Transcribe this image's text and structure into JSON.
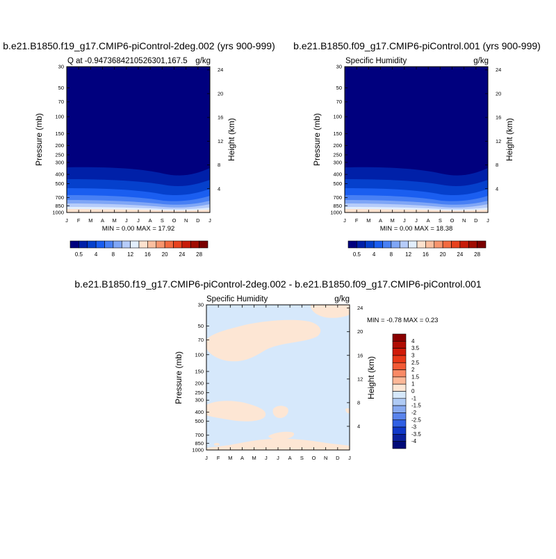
{
  "chart_data": [
    {
      "type": "contour",
      "title": "b.e21.B1850.f19_g17.CMIP6-piControl-2deg.002 (yrs 900-999)",
      "subtitle_left": "Q at -0.9473684210526301,167.5",
      "subtitle_right": "g/kg",
      "ylabel": "Pressure (mb)",
      "ylabel_right": "Height (km)",
      "x_ticks": [
        "J",
        "F",
        "M",
        "A",
        "M",
        "J",
        "J",
        "A",
        "S",
        "O",
        "N",
        "D",
        "J"
      ],
      "y_ticks": [
        "30",
        "50",
        "70",
        "100",
        "150",
        "200",
        "250",
        "300",
        "400",
        "500",
        "700",
        "850",
        "1000"
      ],
      "height_ticks": [
        "24",
        "20",
        "16",
        "12",
        "8",
        "4"
      ],
      "minmax": "MIN =   0.00 MAX =  17.92",
      "colorbar_labels": [
        "0.5",
        "4",
        "8",
        "12",
        "16",
        "20",
        "24",
        "28"
      ],
      "colors": [
        "#00007e",
        "#0020a8",
        "#0540cc",
        "#1a5ef0",
        "#4880f4",
        "#7fa6f6",
        "#b6ccfa",
        "#e2eefd",
        "#fde2cf",
        "#fbbfa0",
        "#f7956e",
        "#f26a40",
        "#e8421e",
        "#c81c0a",
        "#a00c02",
        "#7a0000"
      ]
    },
    {
      "type": "contour",
      "title": "b.e21.B1850.f09_g17.CMIP6-piControl.001 (yrs 900-999)",
      "subtitle_left": "Specific Humidity",
      "subtitle_right": "g/kg",
      "ylabel": "Pressure (mb)",
      "ylabel_right": "Height (km)",
      "x_ticks": [
        "J",
        "F",
        "M",
        "A",
        "M",
        "J",
        "J",
        "A",
        "S",
        "O",
        "N",
        "D",
        "J"
      ],
      "y_ticks": [
        "30",
        "50",
        "70",
        "100",
        "150",
        "200",
        "250",
        "300",
        "400",
        "500",
        "700",
        "850",
        "1000"
      ],
      "height_ticks": [
        "24",
        "20",
        "16",
        "12",
        "8",
        "4"
      ],
      "minmax": "MIN =   0.00 MAX =  18.38",
      "colorbar_labels": [
        "0.5",
        "4",
        "8",
        "12",
        "16",
        "20",
        "24",
        "28"
      ]
    },
    {
      "type": "contour",
      "title": "b.e21.B1850.f19_g17.CMIP6-piControl-2deg.002 - b.e21.B1850.f09_g17.CMIP6-piControl.001",
      "subtitle_left": "Specific Humidity",
      "subtitle_right": "g/kg",
      "ylabel": "Pressure (mb)",
      "ylabel_right": "Height (km)",
      "x_ticks": [
        "J",
        "F",
        "M",
        "A",
        "M",
        "J",
        "J",
        "A",
        "S",
        "O",
        "N",
        "D",
        "J"
      ],
      "y_ticks": [
        "30",
        "50",
        "70",
        "100",
        "150",
        "200",
        "250",
        "300",
        "400",
        "500",
        "700",
        "850",
        "1000"
      ],
      "height_ticks": [
        "24",
        "20",
        "16",
        "12",
        "8",
        "4"
      ],
      "minmax": "MIN =  -0.78 MAX =   0.23",
      "colorbar_labels": [
        "4",
        "3.5",
        "3",
        "2.5",
        "2",
        "1.5",
        "1",
        "0",
        "-1",
        "-1.5",
        "-2",
        "-2.5",
        "-3",
        "-3.5",
        "-4"
      ],
      "colors": [
        "#8a0000",
        "#b00c02",
        "#d01a08",
        "#e83818",
        "#f25a36",
        "#f98a66",
        "#fcb898",
        "#fde6d4",
        "#d6e8fb",
        "#b0cbf5",
        "#88aaf0",
        "#5a84ec",
        "#3060e4",
        "#1038c8",
        "#0a209c",
        "#000a78"
      ],
      "fill_colors": {
        "background": "#d6e8fb",
        "positive": "#fde6d4"
      }
    }
  ]
}
